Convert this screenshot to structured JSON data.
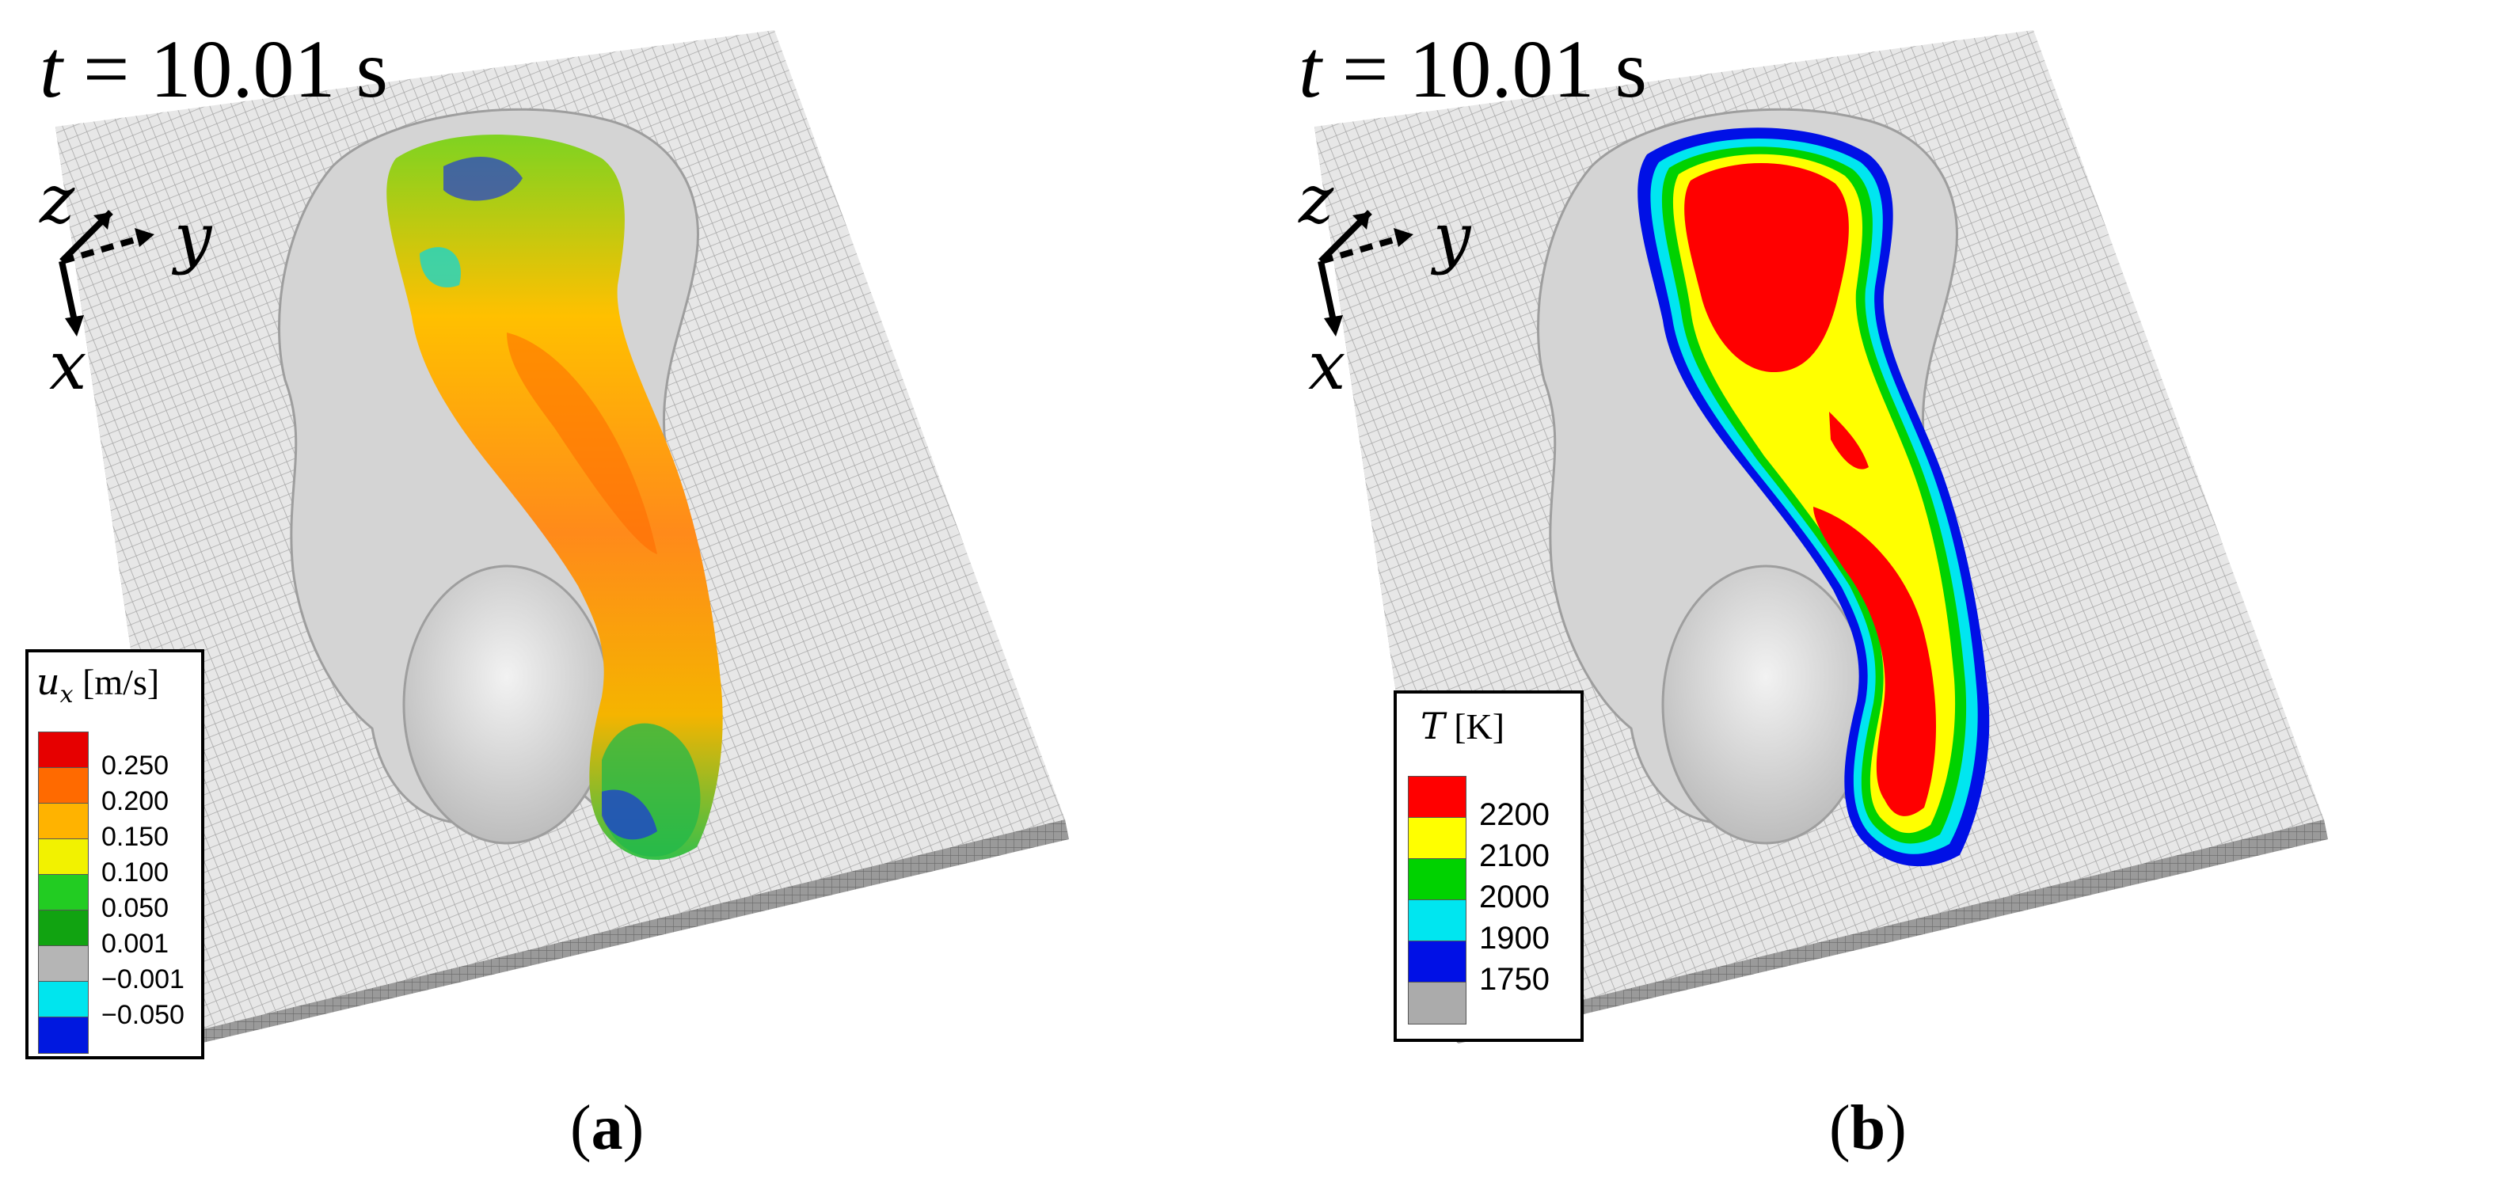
{
  "panels": [
    {
      "id": "a",
      "caption_open": "(",
      "caption_letter": "a",
      "caption_close": ")",
      "time_var": "t",
      "time_text": "= 10.01 s",
      "axes": {
        "z": "z",
        "y": "y",
        "x": "x"
      },
      "legend": {
        "symbol": "u",
        "subscript": "x",
        "unit": "[m/s]",
        "colors": [
          "#e60000",
          "#ff6a00",
          "#ffb300",
          "#f2f200",
          "#22cc22",
          "#11a311",
          "#b5b5b5",
          "#00e5ee",
          "#0018e0"
        ],
        "ticks": [
          "0.250",
          "0.200",
          "0.150",
          "0.100",
          "0.050",
          "0.001",
          "−0.001",
          "−0.050"
        ]
      }
    },
    {
      "id": "b",
      "caption_open": "(",
      "caption_letter": "b",
      "caption_close": ")",
      "time_var": "t",
      "time_text": "= 10.01 s",
      "axes": {
        "z": "z",
        "y": "y",
        "x": "x"
      },
      "legend": {
        "symbol": "T",
        "subscript": "",
        "unit": "[K]",
        "colors": [
          "#ff0000",
          "#ffff00",
          "#00d200",
          "#00e6f0",
          "#0010e6",
          "#ababab"
        ],
        "ticks": [
          "2200",
          "2100",
          "2000",
          "1900",
          "1750"
        ]
      }
    }
  ],
  "palette": {
    "substrate_top": "#e7e7e7",
    "substrate_side": "#8c8c8c",
    "grid_line": "#a8a8a8",
    "solid_particles": "#d9d9d9"
  }
}
